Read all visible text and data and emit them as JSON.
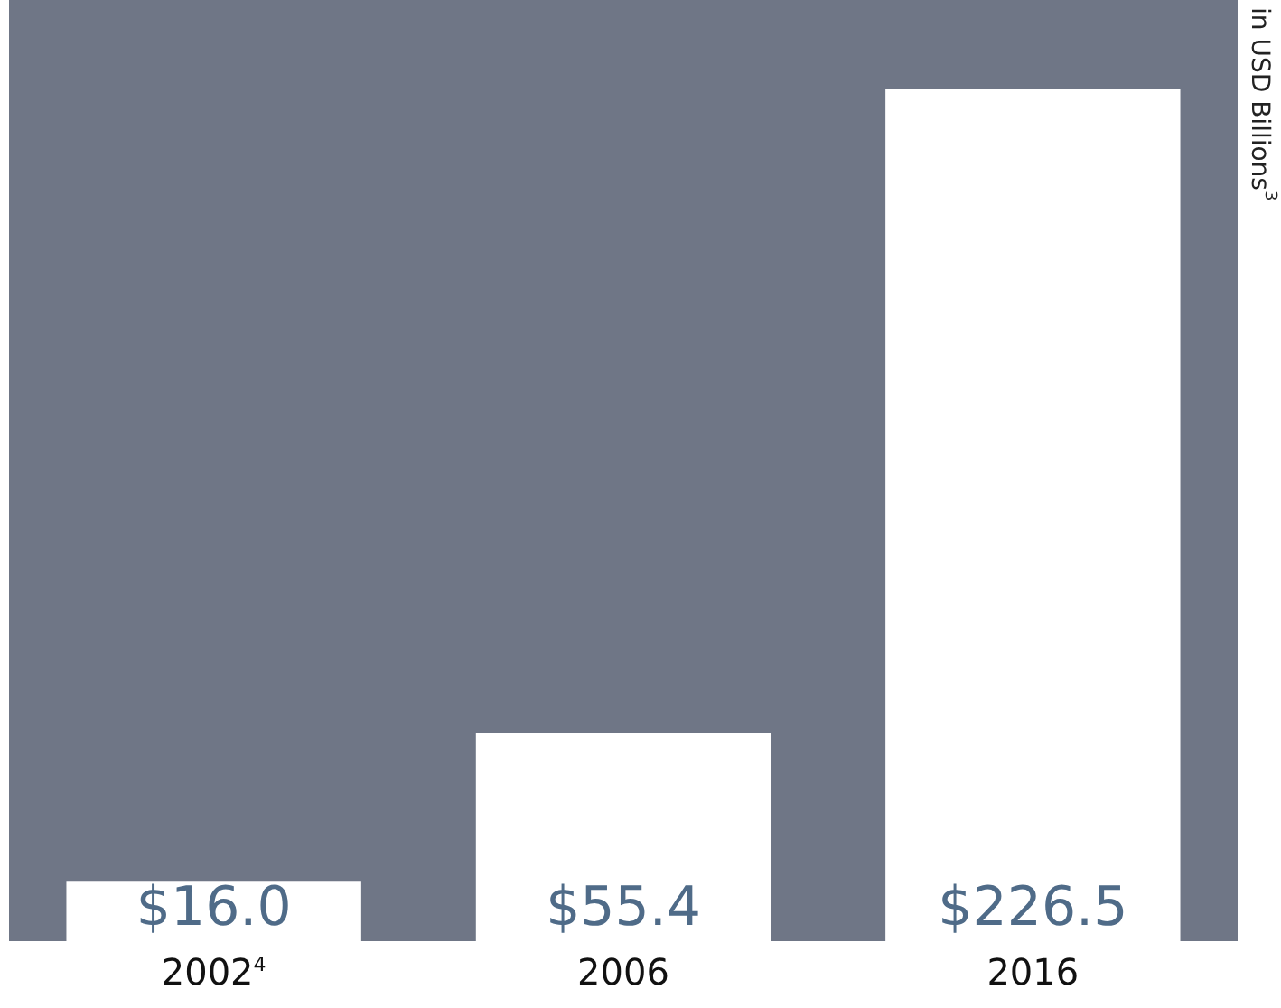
{
  "chart_data": {
    "type": "bar",
    "ylabel": "in USD Billions$^{3}$",
    "categories": [
      "2002$^{4}$",
      "2006",
      "2016"
    ],
    "values": [
      16.0,
      55.4,
      226.5
    ],
    "value_labels": [
      "$16.0",
      "$55.4",
      "$226.5"
    ],
    "color": "#ffffff"
  }
}
